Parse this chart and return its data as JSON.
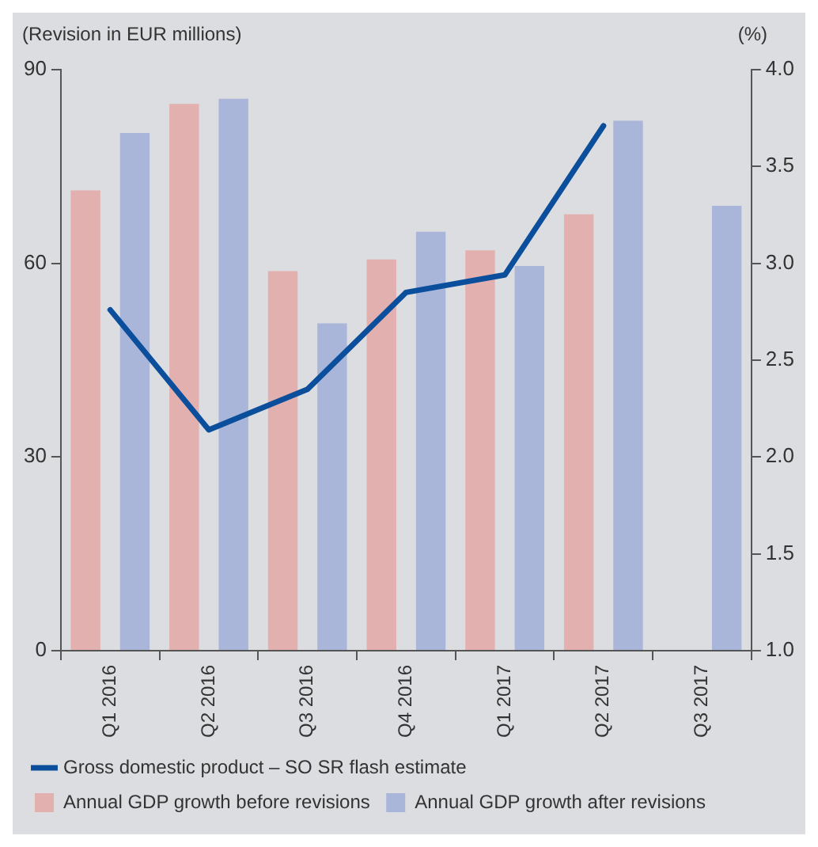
{
  "chart_data": {
    "type": "bar",
    "ylabel": "(Revision in EUR millions)",
    "y2label": "(%)",
    "categories": [
      "Q1 2016",
      "Q2 2016",
      "Q3 2016",
      "Q4 2016",
      "Q1 2017",
      "Q2 2017",
      "Q3 2017"
    ],
    "series": [
      {
        "name": "Annual GDP growth before revisions",
        "color": "#e3b0b0",
        "values": [
          71.3,
          84.7,
          58.8,
          60.6,
          62.0,
          67.6,
          null
        ]
      },
      {
        "name": "Annual GDP growth after revisions",
        "color": "#a9b6d9",
        "values": [
          80.2,
          85.5,
          50.7,
          64.9,
          59.6,
          82.1,
          68.9
        ]
      },
      {
        "name": "Gross domestic product – SO SR flash estimate",
        "type": "line",
        "axis": "y2",
        "color": "#0b4f9c",
        "values": [
          2.76,
          2.14,
          2.35,
          2.85,
          2.94,
          3.71,
          null
        ]
      }
    ],
    "ylim": [
      0,
      90
    ],
    "yticks": [
      0,
      30,
      60,
      90
    ],
    "y2lim": [
      1.0,
      4.0
    ],
    "y2ticks": [
      {
        "value": 1.0,
        "label": "1.0"
      },
      {
        "value": 1.5,
        "label": "1.5"
      },
      {
        "value": 2.0,
        "label": "2.0"
      },
      {
        "value": 2.5,
        "label": "2.5"
      },
      {
        "value": 3.0,
        "label": "3.0"
      },
      {
        "value": 3.5,
        "label": "3.5"
      },
      {
        "value": 4.0,
        "label": "4.0"
      }
    ],
    "grid": false,
    "legend": "bottom",
    "marker": "none",
    "line_style": "solid"
  }
}
